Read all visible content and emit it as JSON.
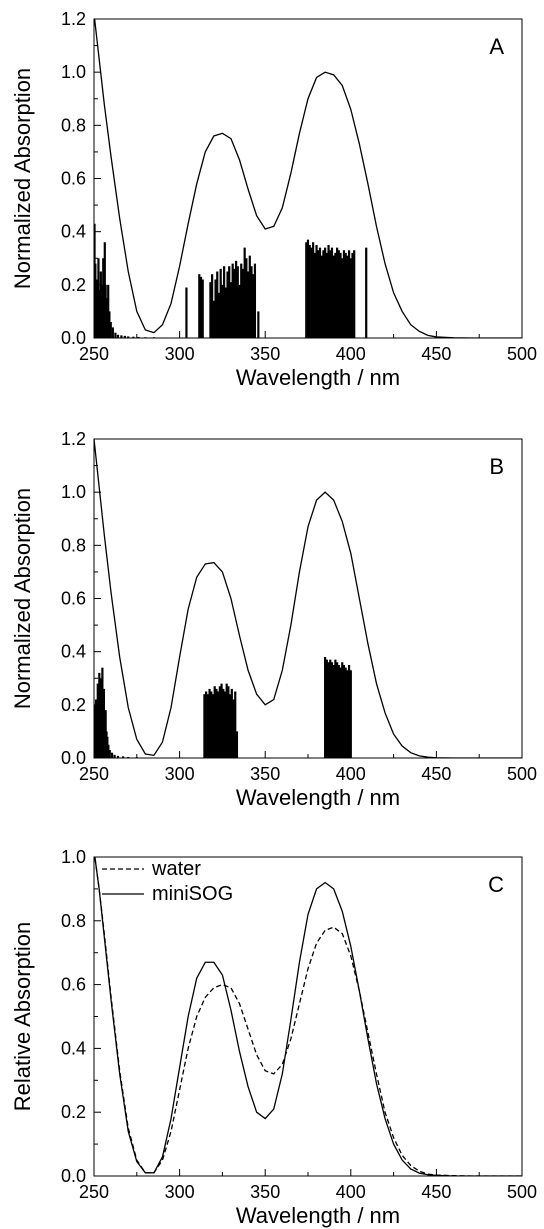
{
  "chart_data": [
    {
      "type": "line",
      "panel_label": "A",
      "xlabel": "Wavelength / nm",
      "ylabel": "Normalized Absorption",
      "xlim": [
        250,
        500
      ],
      "ylim": [
        0,
        1.2
      ],
      "xticks": [
        "250",
        "300",
        "350",
        "400",
        "450",
        "500"
      ],
      "yticks": [
        "0.0",
        "0.2",
        "0.4",
        "0.6",
        "0.8",
        "1.0",
        "1.2"
      ],
      "series": [
        {
          "style": "solid",
          "x": [
            250,
            253,
            256,
            260,
            265,
            270,
            275,
            280,
            285,
            290,
            295,
            300,
            305,
            310,
            315,
            320,
            325,
            330,
            335,
            340,
            345,
            350,
            355,
            360,
            365,
            370,
            375,
            380,
            385,
            390,
            395,
            400,
            405,
            410,
            415,
            420,
            425,
            430,
            435,
            440,
            445,
            450,
            460,
            470,
            480,
            490,
            500
          ],
          "y": [
            1.22,
            1.05,
            0.88,
            0.68,
            0.45,
            0.25,
            0.1,
            0.03,
            0.02,
            0.05,
            0.13,
            0.27,
            0.43,
            0.58,
            0.7,
            0.76,
            0.77,
            0.75,
            0.67,
            0.56,
            0.46,
            0.41,
            0.42,
            0.49,
            0.62,
            0.77,
            0.9,
            0.98,
            1.0,
            0.99,
            0.95,
            0.86,
            0.73,
            0.58,
            0.42,
            0.28,
            0.17,
            0.1,
            0.05,
            0.025,
            0.01,
            0.004,
            0.001,
            0.0,
            0.0,
            0.0,
            0.0
          ]
        }
      ],
      "sticks": {
        "x": [
          250.3,
          250.8,
          251.2,
          251.7,
          252.2,
          252.6,
          253.1,
          253.5,
          254.0,
          254.4,
          254.9,
          255.4,
          255.8,
          256.3,
          256.8,
          257.3,
          257.8,
          258.3,
          259.0,
          259.8,
          261.0,
          262.5,
          264.0,
          266.0,
          268.0,
          270.0,
          273.0,
          276.0,
          280.0,
          285.0,
          290.0,
          304.0,
          311.5,
          312.5,
          313.5,
          318.0,
          319.0,
          320.0,
          321.0,
          322.0,
          323.0,
          324.0,
          325.0,
          326.0,
          327.0,
          328.0,
          329.0,
          330.0,
          331.0,
          332.0,
          333.0,
          334.0,
          335.0,
          336.0,
          337.0,
          338.0,
          339.0,
          340.0,
          341.0,
          342.0,
          343.0,
          344.0,
          346.0,
          374.0,
          375.0,
          376.0,
          377.0,
          378.0,
          379.0,
          380.0,
          381.0,
          382.0,
          383.0,
          384.0,
          385.0,
          386.0,
          387.0,
          388.0,
          389.0,
          390.0,
          391.0,
          392.0,
          393.0,
          394.0,
          395.0,
          396.0,
          397.0,
          398.0,
          399.0,
          400.0,
          401.0,
          402.0,
          409.0
        ],
        "y": [
          0.43,
          0.28,
          0.15,
          0.22,
          0.1,
          0.3,
          0.18,
          0.14,
          0.25,
          0.08,
          0.2,
          0.3,
          0.26,
          0.36,
          0.2,
          0.15,
          0.12,
          0.2,
          0.1,
          0.06,
          0.04,
          0.02,
          0.012,
          0.01,
          0.008,
          0.006,
          0.005,
          0.004,
          0.003,
          0.003,
          0.002,
          0.19,
          0.24,
          0.23,
          0.22,
          0.21,
          0.24,
          0.14,
          0.22,
          0.25,
          0.17,
          0.26,
          0.2,
          0.27,
          0.19,
          0.25,
          0.27,
          0.21,
          0.28,
          0.26,
          0.29,
          0.27,
          0.2,
          0.28,
          0.26,
          0.34,
          0.3,
          0.25,
          0.31,
          0.27,
          0.24,
          0.28,
          0.1,
          0.36,
          0.37,
          0.35,
          0.34,
          0.36,
          0.32,
          0.35,
          0.33,
          0.34,
          0.31,
          0.33,
          0.34,
          0.32,
          0.35,
          0.33,
          0.34,
          0.31,
          0.32,
          0.34,
          0.33,
          0.32,
          0.3,
          0.33,
          0.32,
          0.31,
          0.33,
          0.3,
          0.32,
          0.33,
          0.34
        ]
      }
    },
    {
      "type": "line",
      "panel_label": "B",
      "xlabel": "Wavelength / nm",
      "ylabel": "Normalized Absorption",
      "xlim": [
        250,
        500
      ],
      "ylim": [
        0,
        1.2
      ],
      "xticks": [
        "250",
        "300",
        "350",
        "400",
        "450",
        "500"
      ],
      "yticks": [
        "0.0",
        "0.2",
        "0.4",
        "0.6",
        "0.8",
        "1.0",
        "1.2"
      ],
      "series": [
        {
          "style": "solid",
          "x": [
            250,
            253,
            256,
            260,
            265,
            270,
            275,
            280,
            285,
            290,
            295,
            300,
            305,
            310,
            315,
            320,
            325,
            330,
            335,
            340,
            345,
            350,
            355,
            360,
            365,
            370,
            375,
            380,
            385,
            390,
            395,
            400,
            405,
            410,
            415,
            420,
            425,
            430,
            435,
            440,
            445,
            450,
            460,
            470,
            480,
            490,
            500
          ],
          "y": [
            1.2,
            1.02,
            0.84,
            0.62,
            0.38,
            0.19,
            0.07,
            0.015,
            0.01,
            0.06,
            0.19,
            0.38,
            0.56,
            0.68,
            0.73,
            0.735,
            0.7,
            0.6,
            0.46,
            0.33,
            0.24,
            0.2,
            0.22,
            0.33,
            0.5,
            0.7,
            0.87,
            0.97,
            1.0,
            0.97,
            0.89,
            0.77,
            0.6,
            0.43,
            0.28,
            0.17,
            0.09,
            0.045,
            0.02,
            0.008,
            0.003,
            0.001,
            0.0,
            0.0,
            0.0,
            0.0,
            0.0
          ]
        }
      ],
      "sticks": {
        "x": [
          250.3,
          250.8,
          251.2,
          251.7,
          252.2,
          252.6,
          253.1,
          253.5,
          254.0,
          254.4,
          254.9,
          255.4,
          255.8,
          256.3,
          256.8,
          257.3,
          257.8,
          258.4,
          259.2,
          260.5,
          262.0,
          264.0,
          267.0,
          270.0,
          275.0,
          280.0,
          286.0,
          314.5,
          315.5,
          316.5,
          317.5,
          318.5,
          319.5,
          320.5,
          321.5,
          322.5,
          323.5,
          324.5,
          325.5,
          326.5,
          327.5,
          328.5,
          329.5,
          330.5,
          331.5,
          332.5,
          333.5,
          385.0,
          386.0,
          387.0,
          388.0,
          389.0,
          390.0,
          391.0,
          392.0,
          393.0,
          394.0,
          395.0,
          396.0,
          397.0,
          398.0,
          399.0,
          400.0
        ],
        "y": [
          0.2,
          0.15,
          0.22,
          0.1,
          0.28,
          0.12,
          0.32,
          0.25,
          0.3,
          0.18,
          0.34,
          0.22,
          0.26,
          0.14,
          0.18,
          0.1,
          0.08,
          0.05,
          0.03,
          0.02,
          0.012,
          0.008,
          0.006,
          0.004,
          0.003,
          0.002,
          0.002,
          0.24,
          0.25,
          0.24,
          0.26,
          0.25,
          0.24,
          0.27,
          0.26,
          0.25,
          0.27,
          0.28,
          0.26,
          0.25,
          0.28,
          0.27,
          0.24,
          0.26,
          0.22,
          0.25,
          0.1,
          0.38,
          0.37,
          0.36,
          0.37,
          0.36,
          0.35,
          0.37,
          0.36,
          0.35,
          0.34,
          0.36,
          0.35,
          0.34,
          0.33,
          0.35,
          0.33
        ]
      }
    },
    {
      "type": "line",
      "panel_label": "C",
      "xlabel": "Wavelength / nm",
      "ylabel": "Relative Absorption",
      "xlim": [
        250,
        500
      ],
      "ylim": [
        0,
        1.0
      ],
      "xticks": [
        "250",
        "300",
        "350",
        "400",
        "450",
        "500"
      ],
      "yticks": [
        "0.0",
        "0.2",
        "0.4",
        "0.6",
        "0.8",
        "1.0"
      ],
      "legend": "top-left",
      "series": [
        {
          "name": "water",
          "style": "dashed",
          "x": [
            250,
            253,
            256,
            260,
            265,
            270,
            275,
            280,
            285,
            290,
            295,
            300,
            305,
            310,
            315,
            320,
            325,
            330,
            335,
            340,
            345,
            350,
            355,
            360,
            365,
            370,
            375,
            380,
            385,
            390,
            395,
            400,
            405,
            410,
            415,
            420,
            425,
            430,
            435,
            440,
            445,
            450,
            460,
            470,
            480,
            490,
            500
          ],
          "y": [
            1.02,
            0.9,
            0.76,
            0.56,
            0.33,
            0.15,
            0.05,
            0.01,
            0.01,
            0.05,
            0.14,
            0.27,
            0.4,
            0.5,
            0.56,
            0.59,
            0.6,
            0.59,
            0.54,
            0.46,
            0.38,
            0.33,
            0.32,
            0.35,
            0.43,
            0.54,
            0.65,
            0.73,
            0.77,
            0.78,
            0.76,
            0.69,
            0.58,
            0.45,
            0.32,
            0.2,
            0.12,
            0.065,
            0.033,
            0.015,
            0.006,
            0.003,
            0.001,
            0.0,
            0.0,
            0.0,
            0.0
          ]
        },
        {
          "name": "miniSOG",
          "style": "solid",
          "x": [
            250,
            253,
            256,
            260,
            265,
            270,
            275,
            280,
            285,
            290,
            295,
            300,
            305,
            310,
            315,
            320,
            325,
            330,
            335,
            340,
            345,
            350,
            355,
            360,
            365,
            370,
            375,
            380,
            385,
            390,
            395,
            400,
            405,
            410,
            415,
            420,
            425,
            430,
            435,
            440,
            445,
            450,
            460,
            470,
            480,
            490,
            500
          ],
          "y": [
            1.02,
            0.9,
            0.75,
            0.55,
            0.32,
            0.14,
            0.045,
            0.01,
            0.01,
            0.06,
            0.18,
            0.34,
            0.5,
            0.62,
            0.67,
            0.67,
            0.63,
            0.52,
            0.39,
            0.28,
            0.2,
            0.18,
            0.21,
            0.32,
            0.49,
            0.67,
            0.82,
            0.9,
            0.92,
            0.9,
            0.83,
            0.72,
            0.58,
            0.43,
            0.29,
            0.18,
            0.1,
            0.05,
            0.022,
            0.009,
            0.004,
            0.002,
            0.0,
            0.0,
            0.0,
            0.0,
            0.0
          ]
        }
      ]
    }
  ]
}
